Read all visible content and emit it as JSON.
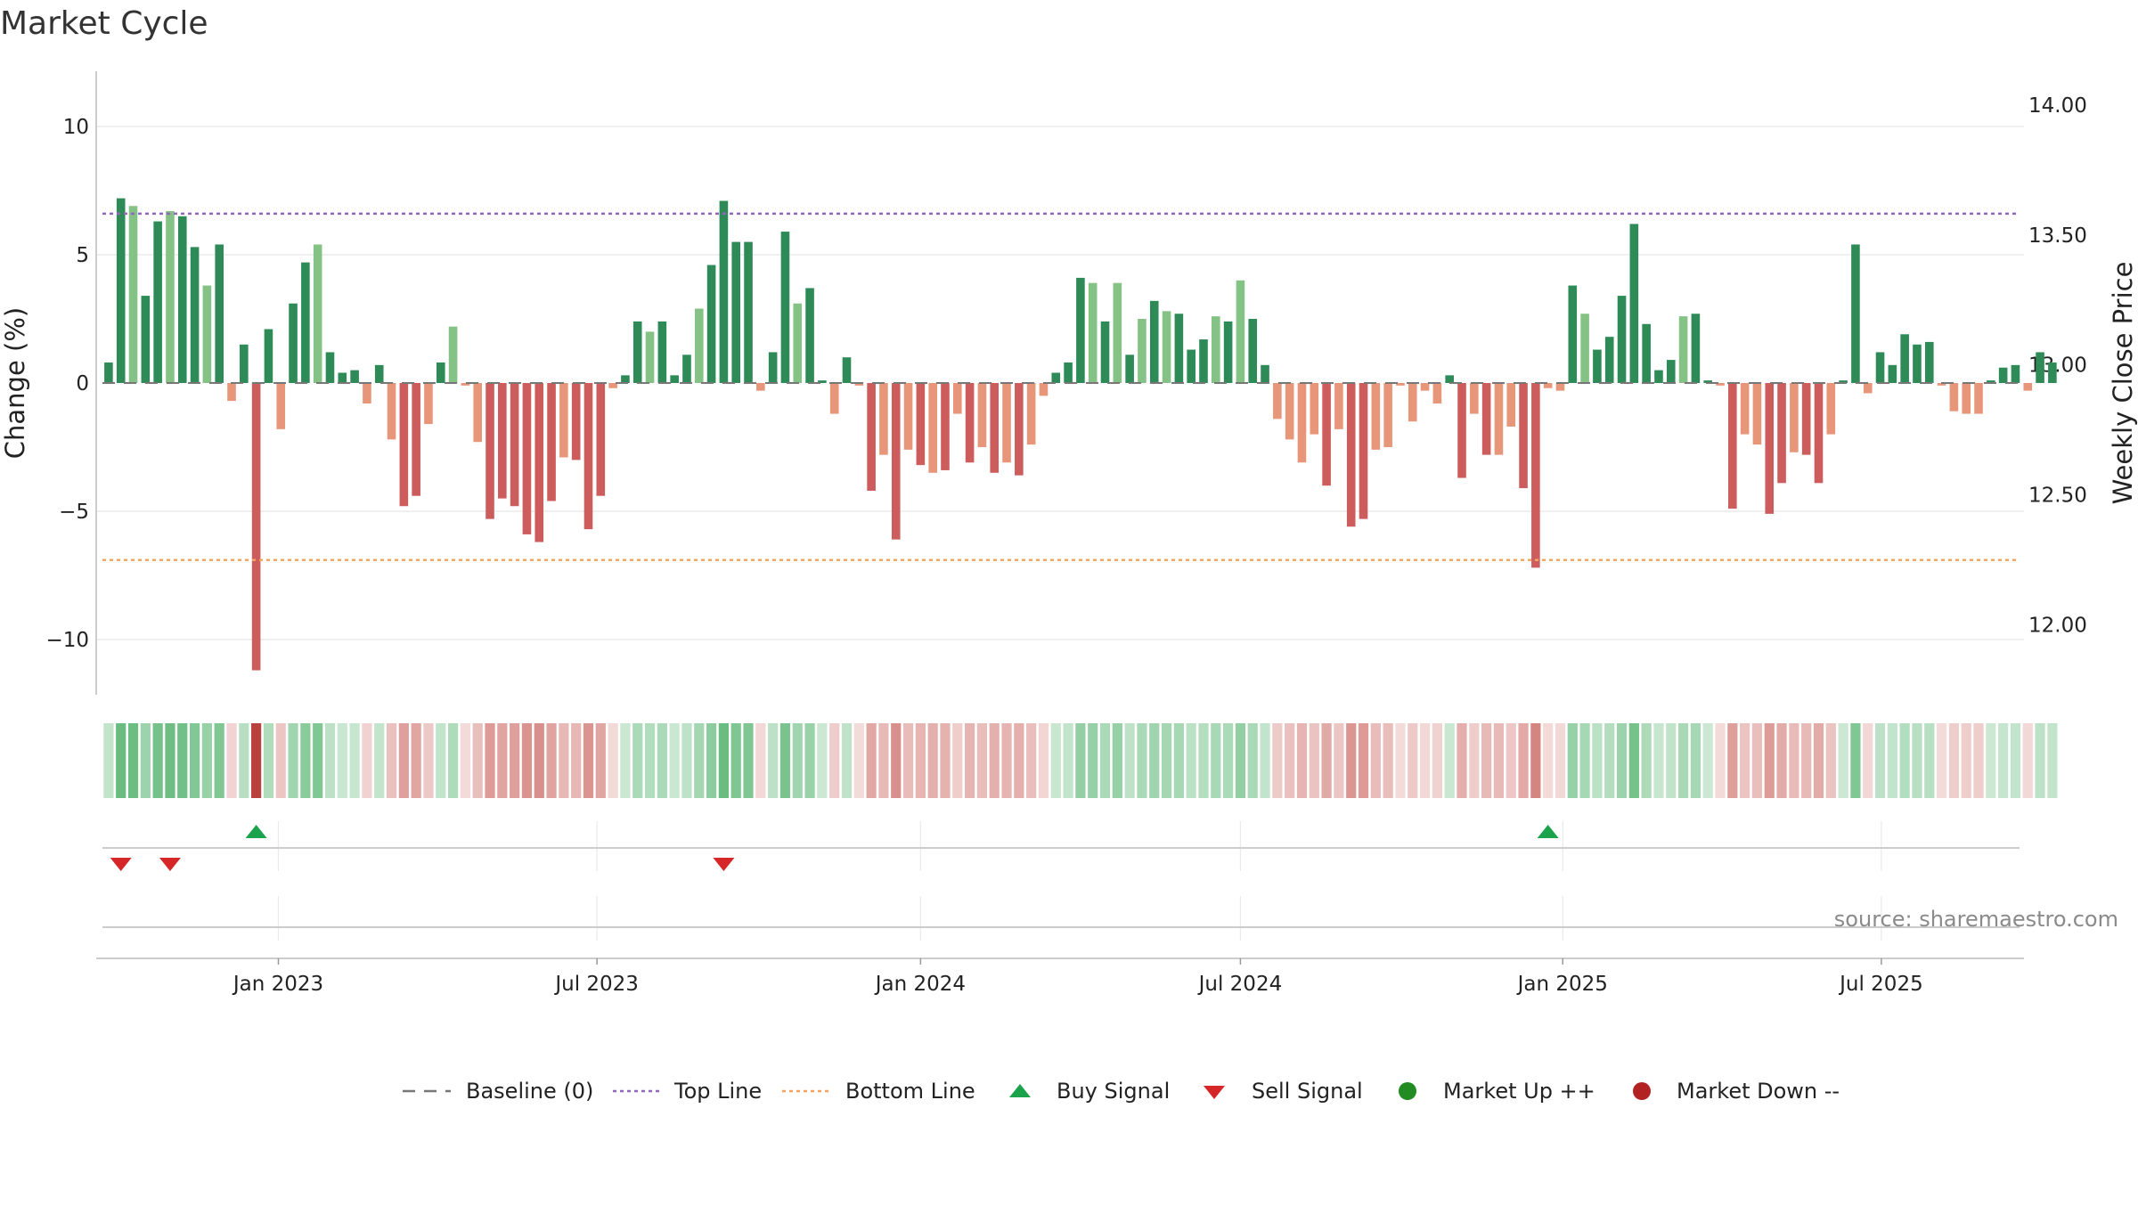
{
  "chart_data": {
    "type": "bar",
    "title": "Market Cycle",
    "ylabel_left": "Change (%)",
    "ylabel_right": "Weekly Close Price",
    "ylim_left": [
      -12,
      12
    ],
    "ylim_right": [
      11.73,
      14.13
    ],
    "yticks_left": [
      10,
      5,
      0,
      -5,
      -10
    ],
    "ytick_labels_left": [
      "10",
      "5",
      "0",
      "−5",
      "−10"
    ],
    "yticks_right": [
      14.0,
      13.5,
      13.0,
      12.5,
      12.0
    ],
    "ytick_labels_right": [
      "14.00",
      "13.50",
      "13.00",
      "12.50",
      "12.00"
    ],
    "x_tick_labels": [
      "Jan 2023",
      "Jul 2023",
      "Jan 2024",
      "Jul 2024",
      "Jan 2025",
      "Jul 2025"
    ],
    "x_tick_weeks": [
      14.3,
      40.2,
      66.5,
      92.5,
      118.7,
      144.6
    ],
    "top_line": 6.6,
    "bottom_line": -6.9,
    "weekly_change_pct": [
      0.8,
      7.2,
      6.9,
      3.4,
      6.3,
      6.7,
      6.5,
      5.3,
      3.8,
      5.4,
      -0.7,
      1.5,
      -11.2,
      2.1,
      -1.8,
      3.1,
      4.7,
      5.4,
      1.2,
      0.4,
      0.5,
      -0.8,
      0.7,
      -2.2,
      -4.8,
      -4.4,
      -1.6,
      0.8,
      2.2,
      -0.1,
      -2.3,
      -5.3,
      -4.5,
      -4.8,
      -5.9,
      -6.2,
      -4.6,
      -2.9,
      -3.0,
      -5.7,
      -4.4,
      -0.2,
      0.3,
      2.4,
      2.0,
      2.4,
      0.3,
      1.1,
      2.9,
      4.6,
      7.1,
      5.5,
      5.5,
      -0.3,
      1.2,
      5.9,
      3.1,
      3.7,
      0.1,
      -1.2,
      1.0,
      -0.1,
      -4.2,
      -2.8,
      -6.1,
      -2.6,
      -3.2,
      -3.5,
      -3.4,
      -1.2,
      -3.1,
      -2.5,
      -3.5,
      -3.1,
      -3.6,
      -2.4,
      -0.5,
      0.4,
      0.8,
      4.1,
      3.9,
      2.4,
      3.9,
      1.1,
      2.5,
      3.2,
      2.8,
      2.7,
      1.3,
      1.7,
      2.6,
      2.4,
      4.0,
      2.5,
      0.7,
      -1.4,
      -2.2,
      -3.1,
      -2.0,
      -4.0,
      -1.8,
      -5.6,
      -5.3,
      -2.6,
      -2.5,
      -0.1,
      -1.5,
      -0.3,
      -0.8,
      0.3,
      -3.7,
      -1.2,
      -2.8,
      -2.8,
      -1.7,
      -4.1,
      -7.2,
      -0.2,
      -0.3,
      3.8,
      2.7,
      1.3,
      1.8,
      3.4,
      6.2,
      2.3,
      0.5,
      0.9,
      2.6,
      2.7,
      0.1,
      -0.1,
      -4.9,
      -2.0,
      -2.4,
      -5.1,
      -3.9,
      -2.7,
      -2.8,
      -3.9,
      -2.0,
      0.1,
      5.4,
      -0.4,
      1.2,
      0.7,
      1.9,
      1.5,
      1.6,
      -0.1,
      -1.1,
      -1.2,
      -1.2,
      0.1,
      0.6,
      0.7,
      -0.3,
      1.2,
      0.8
    ],
    "buy_signal_weeks": [
      12,
      117
    ],
    "sell_signal_weeks": [
      1,
      5,
      50
    ],
    "source_text": "source: sharemaestro.com",
    "legend": [
      "Baseline (0)",
      "Top Line",
      "Bottom Line",
      "Buy Signal",
      "Sell Signal",
      "Market Up ++",
      "Market Down --"
    ],
    "colors": {
      "up_strong": "#2e8b57",
      "up_light": "#85c285",
      "down_strong": "#cd5c5c",
      "down_light": "#e8967a",
      "top_line": "#9467bd",
      "bottom_line": "#f4a460",
      "buy": "#1aa34a",
      "sell": "#d62728",
      "market_up": "#228b22",
      "market_down": "#b22222"
    }
  }
}
